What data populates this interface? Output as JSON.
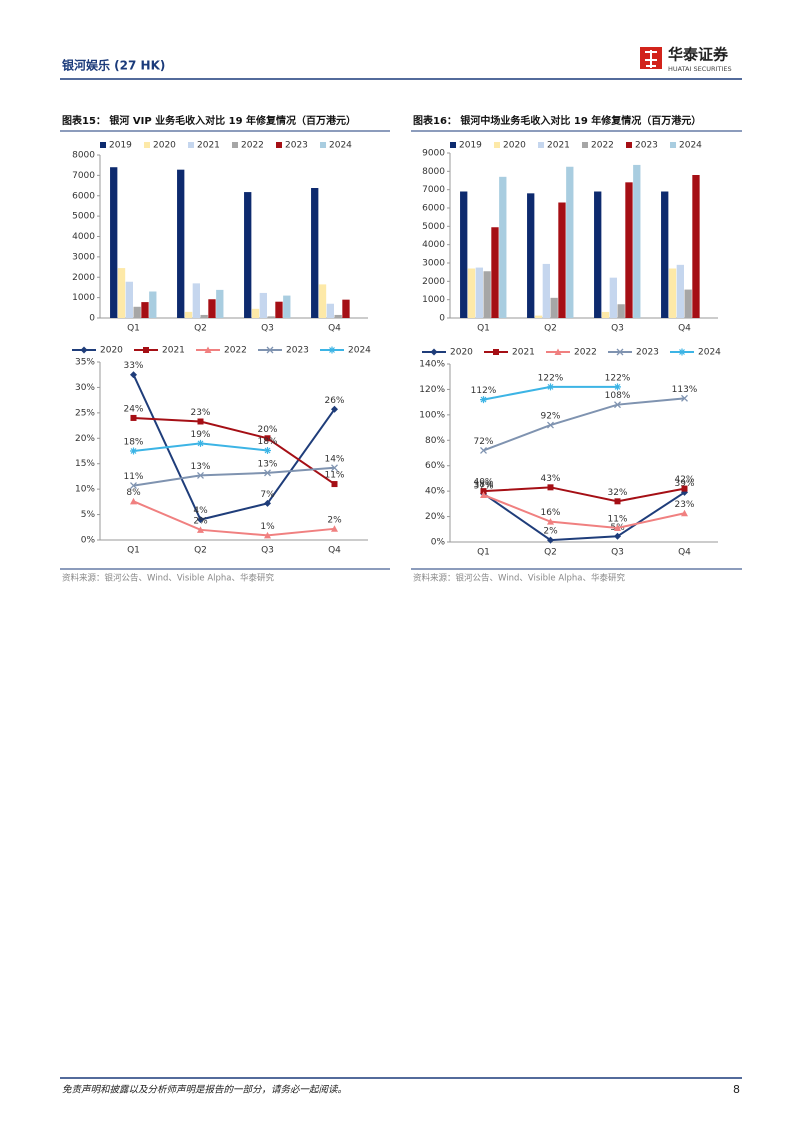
{
  "header": {
    "title": "银河娱乐 (27 HK)",
    "logo_cn": "华泰证券",
    "logo_en": "HUATAI SECURITIES"
  },
  "figures": [
    {
      "title": "图表15： 银河 VIP 业务毛收入对比 19 年修复情况（百万港元）",
      "source": "资料来源：银河公告、Wind、Visible Alpha、华泰研究"
    },
    {
      "title": "图表16： 银河中场业务毛收入对比 19 年修复情况（百万港元）",
      "source": "资料来源：银河公告、Wind、Visible Alpha、华泰研究"
    }
  ],
  "footer": {
    "disclaimer": "免责声明和披露以及分析师声明是报告的一部分，请务必一起阅读。",
    "page": "8"
  },
  "chart_data": [
    {
      "type": "bar",
      "categories": [
        "Q1",
        "Q2",
        "Q3",
        "Q4"
      ],
      "ylim": [
        0,
        8000
      ],
      "yticks": [
        0,
        1000,
        2000,
        3000,
        4000,
        5000,
        6000,
        7000,
        8000
      ],
      "legend": "top",
      "series": [
        {
          "name": "2019",
          "color": "#0d2a6e",
          "values": [
            7400,
            7280,
            6180,
            6380
          ]
        },
        {
          "name": "2020",
          "color": "#fde9a8",
          "values": [
            2450,
            300,
            450,
            1650
          ]
        },
        {
          "name": "2021",
          "color": "#c5d6ee",
          "values": [
            1780,
            1700,
            1230,
            700
          ]
        },
        {
          "name": "2022",
          "color": "#a6a6a6",
          "values": [
            550,
            150,
            80,
            150
          ]
        },
        {
          "name": "2023",
          "color": "#a50f15",
          "values": [
            780,
            920,
            800,
            900
          ]
        },
        {
          "name": "2024",
          "color": "#a9cde0",
          "values": [
            1300,
            1380,
            1100,
            null
          ]
        }
      ]
    },
    {
      "type": "line",
      "categories": [
        "Q1",
        "Q2",
        "Q3",
        "Q4"
      ],
      "ylim": [
        0,
        35
      ],
      "legend": "top",
      "yticks": [
        {
          "value": 0,
          "label": "0%"
        },
        {
          "value": 5,
          "label": "5%"
        },
        {
          "value": 10,
          "label": "10%"
        },
        {
          "value": 15,
          "label": "15%"
        },
        {
          "value": 20,
          "label": "20%"
        },
        {
          "value": 25,
          "label": "25%"
        },
        {
          "value": 30,
          "label": "30%"
        },
        {
          "value": 35,
          "label": "35%"
        }
      ],
      "series": [
        {
          "name": "2020",
          "color": "#1f3d7a",
          "marker": "diamond",
          "values": [
            32.5,
            4,
            7.2,
            25.7
          ],
          "value_labels": [
            "33%",
            "4%",
            "7%",
            "26%"
          ]
        },
        {
          "name": "2021",
          "color": "#a50f15",
          "marker": "square",
          "values": [
            24,
            23.3,
            20,
            11
          ],
          "value_labels": [
            "24%",
            "23%",
            "20%",
            "11%"
          ]
        },
        {
          "name": "2022",
          "color": "#f08080",
          "marker": "triangle",
          "values": [
            7.6,
            2,
            0.9,
            2.2
          ],
          "value_labels": [
            "8%",
            "2%",
            "1%",
            "2%"
          ]
        },
        {
          "name": "2023",
          "color": "#7f93b0",
          "marker": "x",
          "values": [
            10.7,
            12.7,
            13.2,
            14.2
          ],
          "value_labels": [
            "11%",
            "13%",
            "13%",
            "14%"
          ]
        },
        {
          "name": "2024",
          "color": "#3cb4e5",
          "marker": "star",
          "values": [
            17.5,
            19,
            17.6,
            null
          ],
          "value_labels": [
            "18%",
            "19%",
            "18%",
            null
          ]
        }
      ]
    },
    {
      "type": "bar",
      "categories": [
        "Q1",
        "Q2",
        "Q3",
        "Q4"
      ],
      "ylim": [
        0,
        9000
      ],
      "yticks": [
        0,
        1000,
        2000,
        3000,
        4000,
        5000,
        6000,
        7000,
        8000,
        9000
      ],
      "legend": "top",
      "series": [
        {
          "name": "2019",
          "color": "#0d2a6e",
          "values": [
            6900,
            6800,
            6900,
            6900
          ]
        },
        {
          "name": "2020",
          "color": "#fde9a8",
          "values": [
            2700,
            130,
            330,
            2700
          ]
        },
        {
          "name": "2021",
          "color": "#c5d6ee",
          "values": [
            2750,
            2950,
            2200,
            2900
          ]
        },
        {
          "name": "2022",
          "color": "#a6a6a6",
          "values": [
            2550,
            1100,
            750,
            1550
          ]
        },
        {
          "name": "2023",
          "color": "#a50f15",
          "values": [
            4950,
            6300,
            7400,
            7800
          ]
        },
        {
          "name": "2024",
          "color": "#a9cde0",
          "values": [
            7700,
            8250,
            8350,
            null
          ]
        }
      ]
    },
    {
      "type": "line",
      "categories": [
        "Q1",
        "Q2",
        "Q3",
        "Q4"
      ],
      "ylim": [
        0,
        140
      ],
      "legend": "top",
      "yticks": [
        {
          "value": 0,
          "label": "0%"
        },
        {
          "value": 20,
          "label": "20%"
        },
        {
          "value": 40,
          "label": "40%"
        },
        {
          "value": 60,
          "label": "60%"
        },
        {
          "value": 80,
          "label": "80%"
        },
        {
          "value": 100,
          "label": "100%"
        },
        {
          "value": 120,
          "label": "120%"
        },
        {
          "value": 140,
          "label": "140%"
        }
      ],
      "series": [
        {
          "name": "2020",
          "color": "#1f3d7a",
          "marker": "diamond",
          "values": [
            38,
            1.5,
            4.5,
            39
          ],
          "value_labels": [
            "38%",
            "2%",
            "5%",
            "39%"
          ]
        },
        {
          "name": "2021",
          "color": "#a50f15",
          "marker": "square",
          "values": [
            40,
            43,
            32,
            42
          ],
          "value_labels": [
            "40%",
            "43%",
            "32%",
            "42%"
          ]
        },
        {
          "name": "2022",
          "color": "#f08080",
          "marker": "triangle",
          "values": [
            37,
            16,
            11,
            22.6
          ],
          "value_labels": [
            "37%",
            "16%",
            "11%",
            "23%"
          ]
        },
        {
          "name": "2023",
          "color": "#7f93b0",
          "marker": "x",
          "values": [
            72,
            92,
            108,
            113
          ],
          "value_labels": [
            "72%",
            "92%",
            "108%",
            "113%"
          ]
        },
        {
          "name": "2024",
          "color": "#3cb4e5",
          "marker": "star",
          "values": [
            112,
            122,
            122,
            null
          ],
          "value_labels": [
            "112%",
            "122%",
            "122%",
            null
          ]
        }
      ]
    }
  ]
}
